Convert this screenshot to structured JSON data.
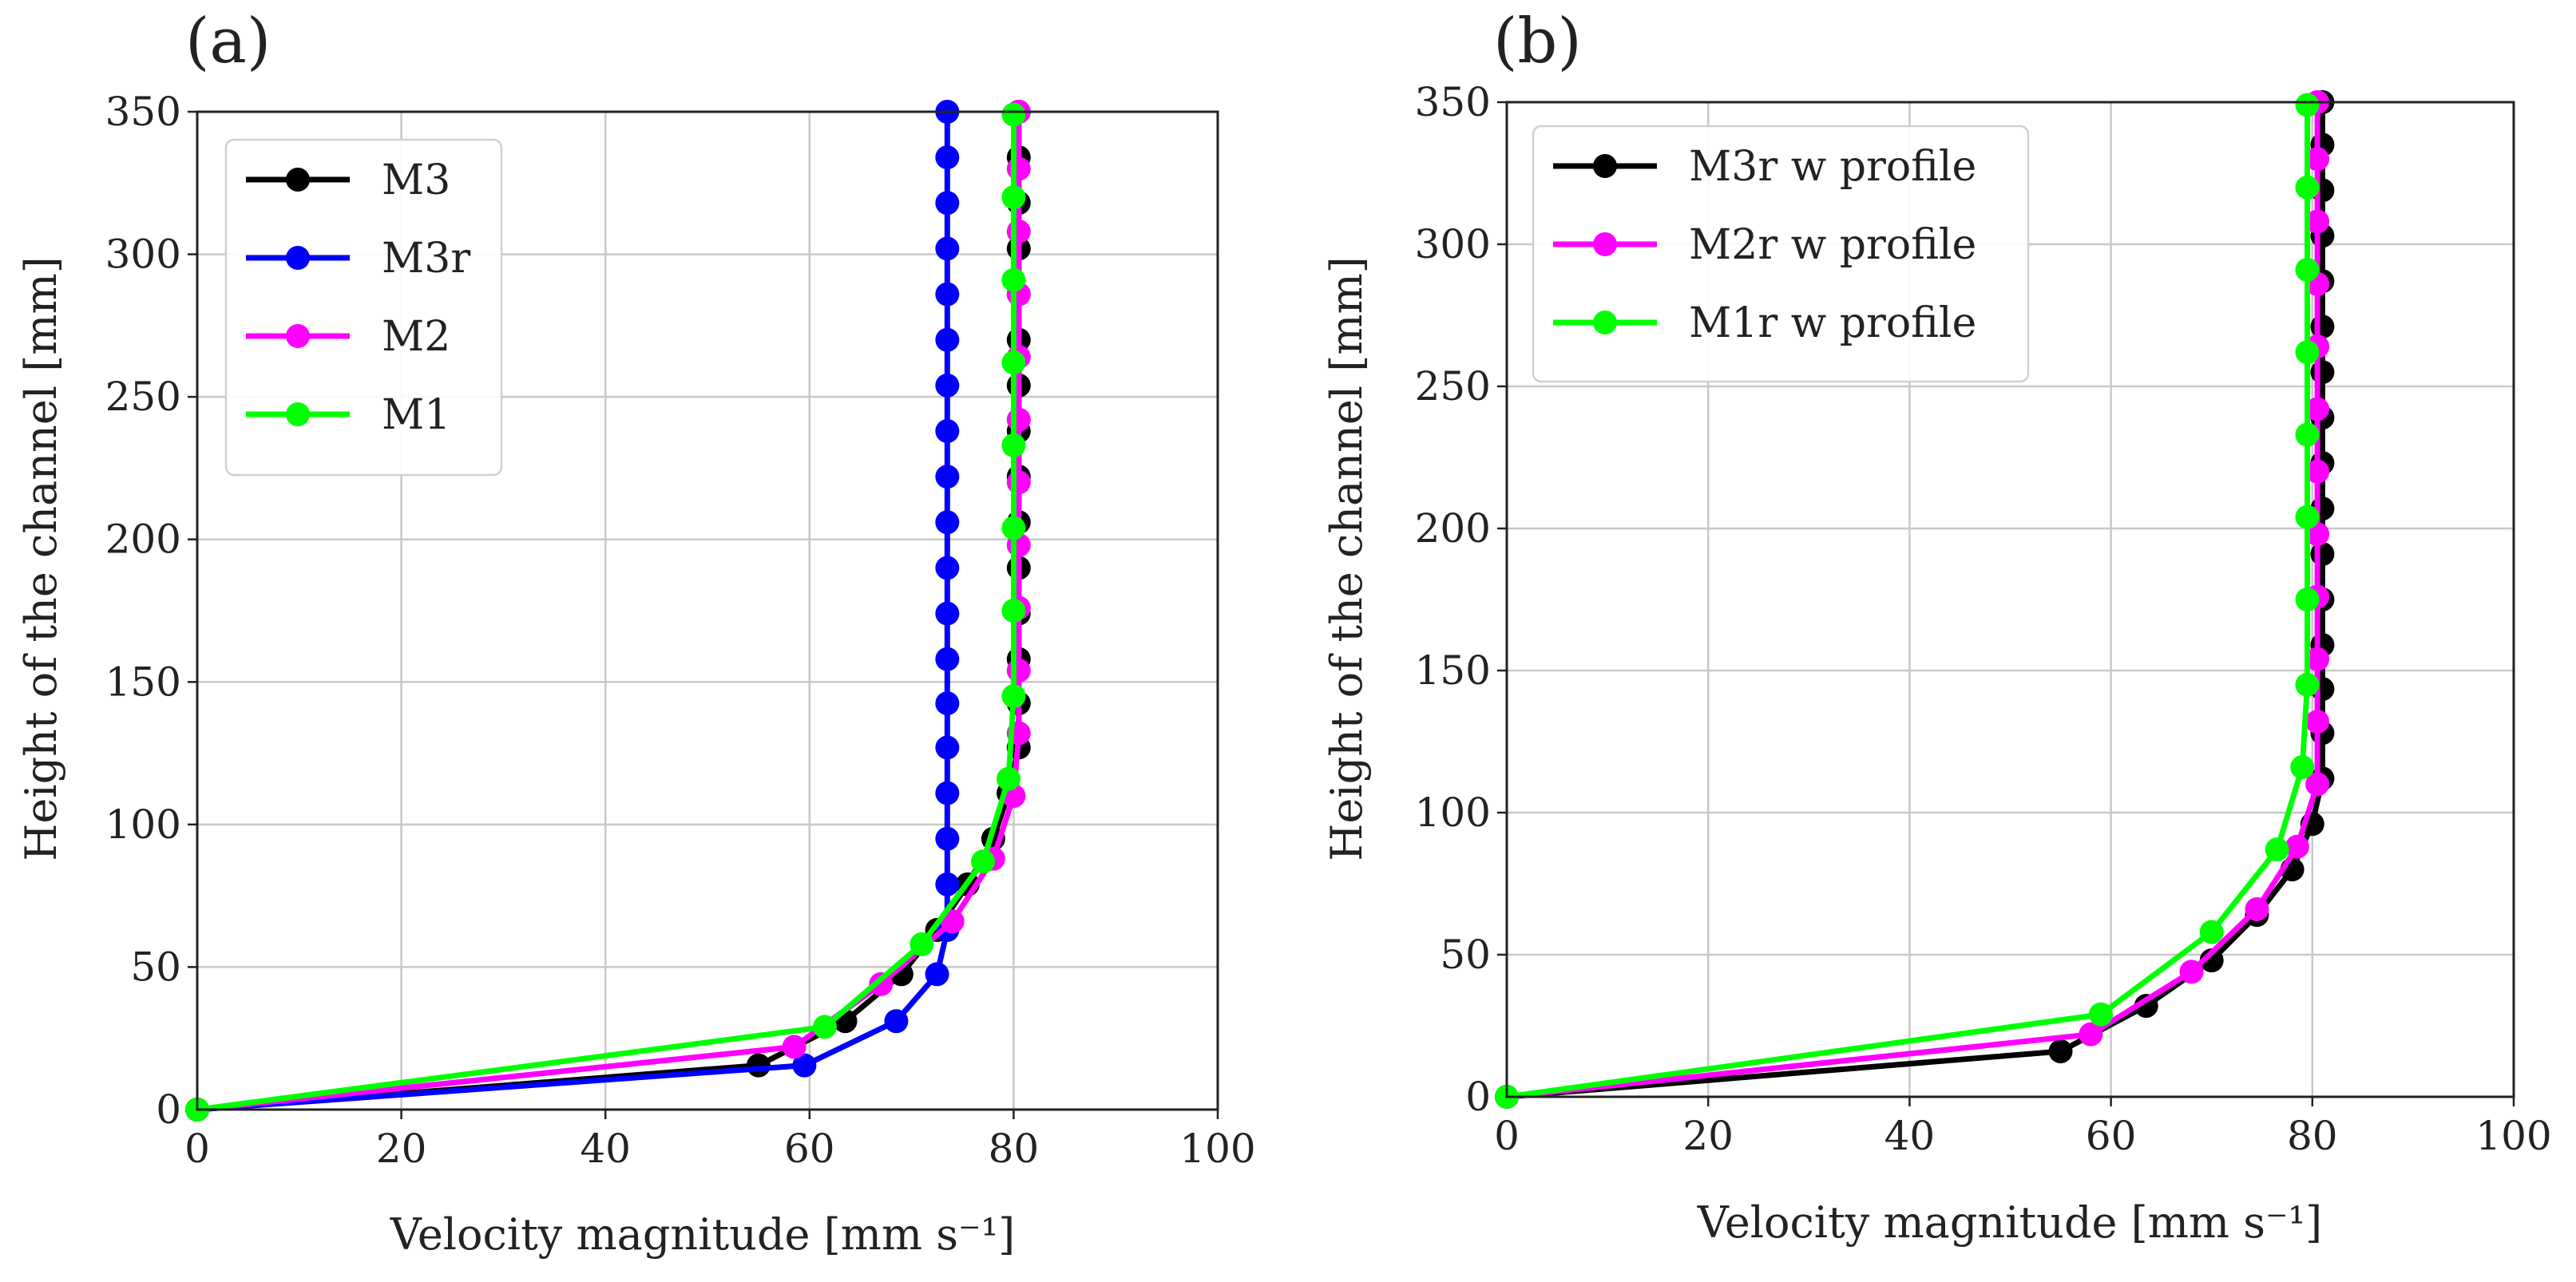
{
  "chart_data": [
    {
      "type": "line",
      "panel_label": "(a)",
      "xlabel": "Velocity magnitude [mm s⁻¹]",
      "ylabel": "Height of the channel [mm]",
      "xlim": [
        0,
        100
      ],
      "ylim": [
        0,
        350
      ],
      "xticks": [
        "0",
        "20",
        "40",
        "60",
        "80",
        "100"
      ],
      "yticks": [
        "0",
        "50",
        "100",
        "150",
        "200",
        "250",
        "300",
        "350"
      ],
      "grid": true,
      "legend_position": "upper-left",
      "series": [
        {
          "name": "M3",
          "color": "#000000",
          "points": [
            [
              0,
              0
            ],
            [
              55,
              15.5
            ],
            [
              63.5,
              31
            ],
            [
              69,
              47.5
            ],
            [
              72.5,
              63
            ],
            [
              75.5,
              79
            ],
            [
              78,
              95
            ],
            [
              79.5,
              111
            ],
            [
              80.5,
              127
            ],
            [
              80.5,
              142.5
            ],
            [
              80.5,
              158
            ],
            [
              80.5,
              174
            ],
            [
              80.5,
              190
            ],
            [
              80.5,
              206
            ],
            [
              80.5,
              222
            ],
            [
              80.5,
              238
            ],
            [
              80.5,
              254
            ],
            [
              80.5,
              270
            ],
            [
              80.5,
              286
            ],
            [
              80.5,
              302
            ],
            [
              80.5,
              318
            ],
            [
              80.5,
              334
            ],
            [
              80.5,
              350
            ]
          ]
        },
        {
          "name": "M3r",
          "color": "#0000ff",
          "points": [
            [
              0,
              0
            ],
            [
              59.5,
              15.5
            ],
            [
              68.5,
              31
            ],
            [
              72.5,
              47.5
            ],
            [
              73.5,
              63
            ],
            [
              73.5,
              79
            ],
            [
              73.5,
              95
            ],
            [
              73.5,
              111
            ],
            [
              73.5,
              127
            ],
            [
              73.5,
              142.5
            ],
            [
              73.5,
              158
            ],
            [
              73.5,
              174
            ],
            [
              73.5,
              190
            ],
            [
              73.5,
              206
            ],
            [
              73.5,
              222
            ],
            [
              73.5,
              238
            ],
            [
              73.5,
              254
            ],
            [
              73.5,
              270
            ],
            [
              73.5,
              286
            ],
            [
              73.5,
              302
            ],
            [
              73.5,
              318
            ],
            [
              73.5,
              334
            ],
            [
              73.5,
              350
            ]
          ]
        },
        {
          "name": "M2",
          "color": "#ff00ff",
          "points": [
            [
              0,
              0
            ],
            [
              58.5,
              22
            ],
            [
              67,
              44
            ],
            [
              74,
              66
            ],
            [
              78,
              88
            ],
            [
              80,
              110
            ],
            [
              80.5,
              132
            ],
            [
              80.5,
              154
            ],
            [
              80.5,
              176
            ],
            [
              80.5,
              198
            ],
            [
              80.5,
              220
            ],
            [
              80.5,
              242
            ],
            [
              80.5,
              264
            ],
            [
              80.5,
              286
            ],
            [
              80.5,
              308
            ],
            [
              80.5,
              330
            ],
            [
              80.5,
              350
            ]
          ]
        },
        {
          "name": "M1",
          "color": "#00ff00",
          "points": [
            [
              0,
              0
            ],
            [
              61.5,
              29
            ],
            [
              71,
              58
            ],
            [
              77,
              87
            ],
            [
              79.5,
              116
            ],
            [
              80,
              145
            ],
            [
              80,
              175
            ],
            [
              80,
              204
            ],
            [
              80,
              233
            ],
            [
              80,
              262
            ],
            [
              80,
              291
            ],
            [
              80,
              320
            ],
            [
              80,
              349
            ]
          ]
        }
      ]
    },
    {
      "type": "line",
      "panel_label": "(b)",
      "xlabel": "Velocity magnitude [mm s⁻¹]",
      "ylabel": "Height of the channel [mm]",
      "xlim": [
        0,
        100
      ],
      "ylim": [
        0,
        350
      ],
      "xticks": [
        "0",
        "20",
        "40",
        "60",
        "80",
        "100"
      ],
      "yticks": [
        "0",
        "50",
        "100",
        "150",
        "200",
        "250",
        "300",
        "350"
      ],
      "grid": true,
      "legend_position": "upper-left",
      "series": [
        {
          "name": "M3r w profile",
          "color": "#000000",
          "points": [
            [
              0,
              0
            ],
            [
              55,
              16
            ],
            [
              63.5,
              32
            ],
            [
              70,
              48
            ],
            [
              74.5,
              64
            ],
            [
              78,
              80
            ],
            [
              80,
              96
            ],
            [
              81,
              112
            ],
            [
              81,
              128
            ],
            [
              81,
              143.5
            ],
            [
              81,
              159
            ],
            [
              81,
              175
            ],
            [
              81,
              191
            ],
            [
              81,
              207
            ],
            [
              81,
              223
            ],
            [
              81,
              239
            ],
            [
              81,
              255
            ],
            [
              81,
              271
            ],
            [
              81,
              287
            ],
            [
              81,
              303
            ],
            [
              81,
              319
            ],
            [
              81,
              335
            ],
            [
              81,
              350
            ]
          ]
        },
        {
          "name": "M2r w profile",
          "color": "#ff00ff",
          "points": [
            [
              0,
              0
            ],
            [
              58,
              22
            ],
            [
              68,
              44
            ],
            [
              74.5,
              66
            ],
            [
              78.5,
              88
            ],
            [
              80.5,
              110
            ],
            [
              80.5,
              132
            ],
            [
              80.5,
              154
            ],
            [
              80.5,
              176
            ],
            [
              80.5,
              198
            ],
            [
              80.5,
              220
            ],
            [
              80.5,
              242
            ],
            [
              80.5,
              264
            ],
            [
              80.5,
              286
            ],
            [
              80.5,
              308
            ],
            [
              80.5,
              330
            ],
            [
              80.5,
              350
            ]
          ]
        },
        {
          "name": "M1r w profile",
          "color": "#00ff00",
          "points": [
            [
              0,
              0
            ],
            [
              59,
              29
            ],
            [
              70,
              58
            ],
            [
              76.5,
              87
            ],
            [
              79,
              116
            ],
            [
              79.5,
              145
            ],
            [
              79.5,
              175
            ],
            [
              79.5,
              204
            ],
            [
              79.5,
              233
            ],
            [
              79.5,
              262
            ],
            [
              79.5,
              291
            ],
            [
              79.5,
              320
            ],
            [
              79.5,
              349
            ]
          ]
        }
      ]
    }
  ]
}
